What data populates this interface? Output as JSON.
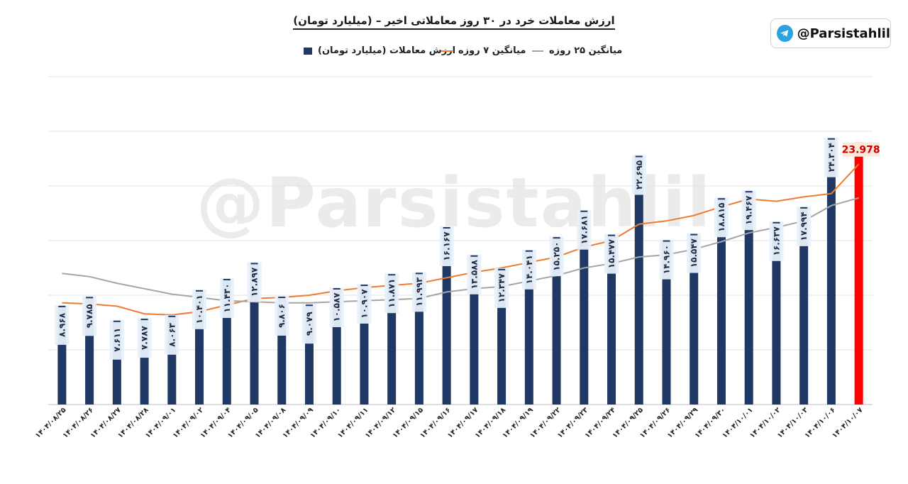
{
  "title": "ارزش معاملات خرد در ۳۰ روز معاملاتی اخیر – (میلیارد تومان)",
  "handle": "@Parsistahlil",
  "watermark": "@Parsistahlil",
  "colors": {
    "bar": "#1f3864",
    "highlight": "#ff0000",
    "ma7": "#ed7d31",
    "ma25": "#a5a5a5",
    "label_bg": "#e8f0fa",
    "last_label_bg": "#fde9d9",
    "last_label_text": "#d00000"
  },
  "icons": {
    "telegram": "telegram-icon"
  },
  "chart_data": {
    "type": "bar",
    "title": "ارزش معاملات خرد در ۳۰ روز معاملاتی اخیر – (میلیارد تومان)",
    "ylim": [
      0,
      30
    ],
    "grid": true,
    "legend_position": "top",
    "categories": [
      "۱۴۰۴/۰۸/۲۵",
      "۱۴۰۴/۰۸/۲۶",
      "۱۴۰۴/۰۸/۲۷",
      "۱۴۰۴/۰۸/۲۸",
      "۱۴۰۴/۰۹/۰۱",
      "۱۴۰۴/۰۹/۰۲",
      "۱۴۰۴/۰۹/۰۴",
      "۱۴۰۴/۰۹/۰۵",
      "۱۴۰۴/۰۹/۰۸",
      "۱۴۰۴/۰۹/۰۹",
      "۱۴۰۴/۰۹/۱۰",
      "۱۴۰۴/۰۹/۱۱",
      "۱۴۰۴/۰۹/۱۲",
      "۱۴۰۴/۰۹/۱۵",
      "۱۴۰۴/۰۹/۱۶",
      "۱۴۰۴/۰۹/۱۷",
      "۱۴۰۴/۰۹/۱۸",
      "۱۴۰۴/۰۹/۱۹",
      "۱۴۰۴/۰۹/۲۲",
      "۱۴۰۴/۰۹/۲۳",
      "۱۴۰۴/۰۹/۲۴",
      "۱۴۰۴/۰۹/۲۵",
      "۱۴۰۴/۰۹/۲۶",
      "۱۴۰۴/۰۹/۲۹",
      "۱۴۰۴/۰۹/۳۰",
      "۱۴۰۴/۱۰/۰۱",
      "۱۴۰۴/۱۰/۰۲",
      "۱۴۰۴/۱۰/۰۳",
      "۱۴۰۴/۱۰/۰۶",
      "۱۴۰۴/۱۰/۰۷"
    ],
    "series": [
      {
        "name": "ارزش معاملات (میلیارد تومان)",
        "type": "bar",
        "values": [
          8.968,
          9.785,
          7.611,
          7.787,
          8.063,
          10.401,
          11.43,
          12.897,
          9.806,
          9.079,
          10.587,
          10.907,
          11.871,
          11.993,
          16.167,
          13.588,
          12.347,
          14.041,
          15.25,
          17.681,
          15.477,
          22.695,
          14.96,
          15.547,
          18.815,
          19.467,
          16.637,
          17.994,
          24.304,
          23.978
        ],
        "labels": [
          "۸.۹۶۸",
          "۹.۷۸۵",
          "۷.۶۱۱",
          "۷.۷۸۷",
          "۸.۰۶۳",
          "۱۰.۴۰۱",
          "۱۱.۴۳۰",
          "۱۲.۸۹۷",
          "۹.۸۰۶",
          "۹.۰۷۹",
          "۱۰.۵۸۷",
          "۱۰.۹۰۷",
          "۱۱.۸۷۱",
          "۱۱.۹۹۳",
          "۱۶.۱۶۷",
          "۱۳.۵۸۸",
          "۱۲.۳۴۷",
          "۱۴.۰۴۱",
          "۱۵.۲۵۰",
          "۱۷.۶۸۱",
          "۱۵.۴۷۷",
          "۲۲.۶۹۵",
          "۱۴.۹۶۰",
          "۱۵.۵۴۷",
          "۱۸.۸۱۵",
          "۱۹.۴۶۷",
          "۱۶.۶۳۷",
          "۱۷.۹۹۴",
          "۲۴.۳۰۴",
          "23.978"
        ]
      },
      {
        "name": "میانگین ۷ روزه",
        "type": "line",
        "values": [
          9.3,
          9.2,
          9.0,
          8.3,
          8.2,
          8.5,
          9.1,
          9.7,
          9.8,
          10.0,
          10.4,
          10.7,
          10.9,
          11.1,
          11.6,
          12.1,
          12.5,
          13.0,
          13.5,
          14.4,
          15.0,
          16.5,
          16.8,
          17.3,
          18.1,
          18.8,
          18.6,
          19.0,
          19.3,
          22.0
        ]
      },
      {
        "name": "میانگین ۲۵ روزه",
        "type": "line",
        "values": [
          12.0,
          11.7,
          11.1,
          10.6,
          10.1,
          9.8,
          9.5,
          9.4,
          9.3,
          9.3,
          9.4,
          9.5,
          9.6,
          9.7,
          10.3,
          10.6,
          10.8,
          11.3,
          11.8,
          12.5,
          12.9,
          13.5,
          13.7,
          14.2,
          14.9,
          15.7,
          16.2,
          16.8,
          18.2,
          18.9
        ]
      }
    ]
  }
}
